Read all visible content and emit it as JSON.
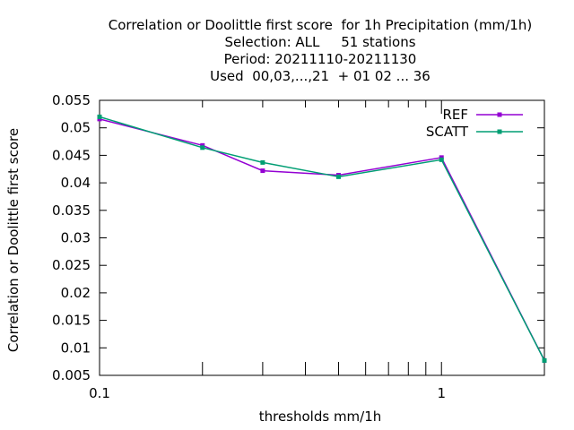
{
  "chart_data": {
    "type": "line",
    "title_lines": [
      "Correlation or Doolittle first score  for 1h Precipitation (mm/1h)",
      "Selection: ALL     51 stations",
      "Period: 20211110-20211130",
      "Used  00,03,...,21  + 01 02 ... 36"
    ],
    "xlabel": "thresholds mm/1h",
    "ylabel": "Correlation or Doolittle first score",
    "x_scale": "log",
    "xlim": [
      0.1,
      2
    ],
    "ylim": [
      0.005,
      0.055
    ],
    "x_ticks": [
      {
        "value": 0.1,
        "label": "0.1"
      },
      {
        "value": 1,
        "label": "1"
      }
    ],
    "y_ticks": [
      {
        "value": 0.005,
        "label": "0.005"
      },
      {
        "value": 0.01,
        "label": "0.01"
      },
      {
        "value": 0.015,
        "label": "0.015"
      },
      {
        "value": 0.02,
        "label": "0.02"
      },
      {
        "value": 0.025,
        "label": "0.025"
      },
      {
        "value": 0.03,
        "label": "0.03"
      },
      {
        "value": 0.035,
        "label": "0.035"
      },
      {
        "value": 0.04,
        "label": "0.04"
      },
      {
        "value": 0.045,
        "label": "0.045"
      },
      {
        "value": 0.05,
        "label": "0.05"
      },
      {
        "value": 0.055,
        "label": "0.055"
      }
    ],
    "x": [
      0.1,
      0.2,
      0.3,
      0.5,
      1,
      2
    ],
    "series": [
      {
        "name": "REF",
        "color": "#9400d3",
        "values": [
          0.0516,
          0.0468,
          0.0422,
          0.0414,
          0.0446,
          0.0077
        ]
      },
      {
        "name": "SCATT",
        "color": "#009e73",
        "values": [
          0.052,
          0.0464,
          0.0437,
          0.0411,
          0.0442,
          0.0077
        ]
      }
    ],
    "legend_position": "top-right",
    "grid": false
  }
}
